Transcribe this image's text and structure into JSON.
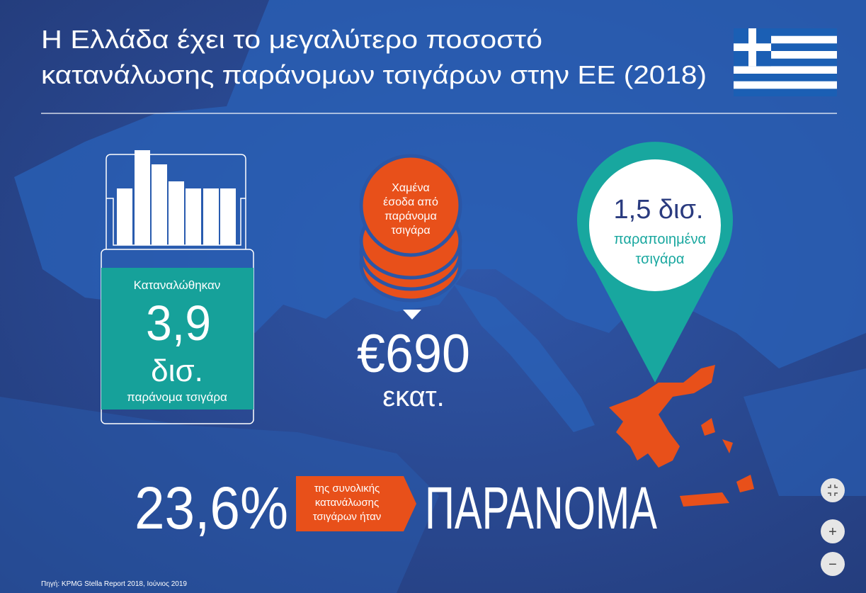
{
  "header": {
    "title_lines": [
      "Η Ελλάδα έχει το μεγαλύτερο ποσοστό",
      "κατανάλωσης παράνομων τσιγάρων στην ΕΕ (2018)"
    ]
  },
  "pack": {
    "label": "Καταναλώθηκαν",
    "value": "3,9",
    "unit": "δισ.",
    "caption": "παράνομα τσιγάρα"
  },
  "coins": {
    "label_lines": [
      "Χαμένα",
      "έσοδα από",
      "παράνομα",
      "τσιγάρα"
    ],
    "value": "€690",
    "unit": "εκατ."
  },
  "pin": {
    "value": "1,5 δισ.",
    "caption_lines": [
      "παραποιημένα",
      "τσιγάρα"
    ]
  },
  "share": {
    "value": "23,6%",
    "arrow_lines": [
      "της συνολικής",
      "κατανάλωσης",
      "τσιγάρων ήταν"
    ],
    "word": "ΠΑΡΑΝΟΜΑ"
  },
  "source": "Πηγή: KPMG Stella Report 2018, Ιούνιος 2019",
  "controls": {
    "zoom_in": "+",
    "zoom_out": "−"
  }
}
